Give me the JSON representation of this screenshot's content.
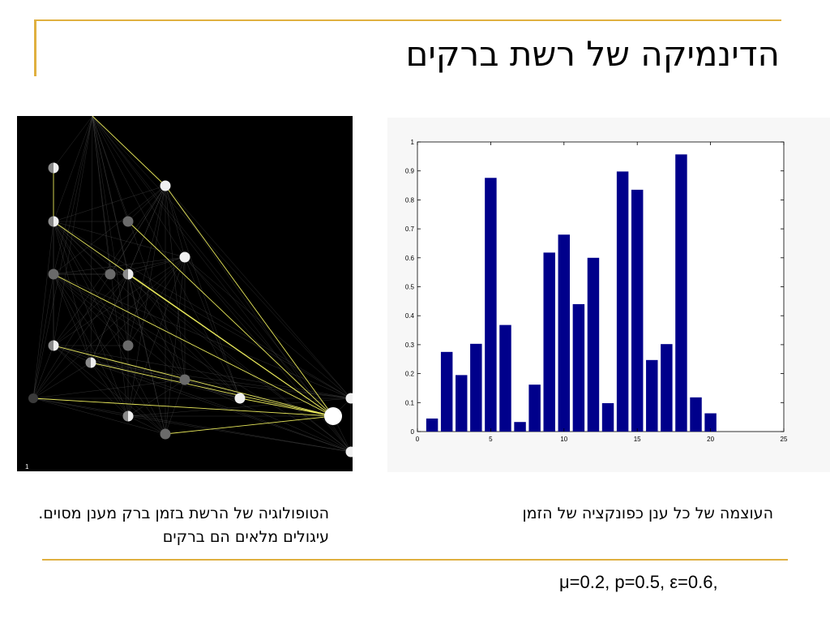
{
  "slide": {
    "title": "הדינמיקה של רשת ברקים",
    "caption_left": "הטופולוגיה של הרשת בזמן ברק מענן מסוים. עיגולים מלאים הם ברקים",
    "caption_right": "העוצמה של כל ענן כפונקציה של הזמן",
    "params": "μ=0.2, p=0.5, ε=0.6,",
    "accent_color": "#e0b040"
  },
  "network": {
    "frame_label": "1",
    "background": "#000000",
    "link_color": "#e8e85a"
  },
  "chart_data": {
    "type": "bar",
    "x": [
      1,
      2,
      3,
      4,
      5,
      6,
      7,
      8,
      9,
      10,
      11,
      12,
      13,
      14,
      15,
      16,
      17,
      18,
      19,
      20
    ],
    "values": [
      0.045,
      0.275,
      0.195,
      0.303,
      0.876,
      0.368,
      0.033,
      0.162,
      0.618,
      0.68,
      0.44,
      0.6,
      0.098,
      0.898,
      0.835,
      0.247,
      0.302,
      0.957,
      0.118,
      0.063
    ],
    "xlim": [
      0,
      25
    ],
    "ylim": [
      0,
      1
    ],
    "xticks": [
      0,
      5,
      10,
      15,
      20,
      25
    ],
    "yticks": [
      0,
      0.1,
      0.2,
      0.3,
      0.4,
      0.5,
      0.6,
      0.7,
      0.8,
      0.9,
      1
    ],
    "ytick_labels": [
      "0",
      "0.1",
      "0.2",
      "0.3",
      "0.4",
      "0.5",
      "0.6",
      "0.7",
      "0.8",
      "0.9",
      "1"
    ],
    "bar_color": "#00008b",
    "title": "",
    "xlabel": "",
    "ylabel": ""
  }
}
